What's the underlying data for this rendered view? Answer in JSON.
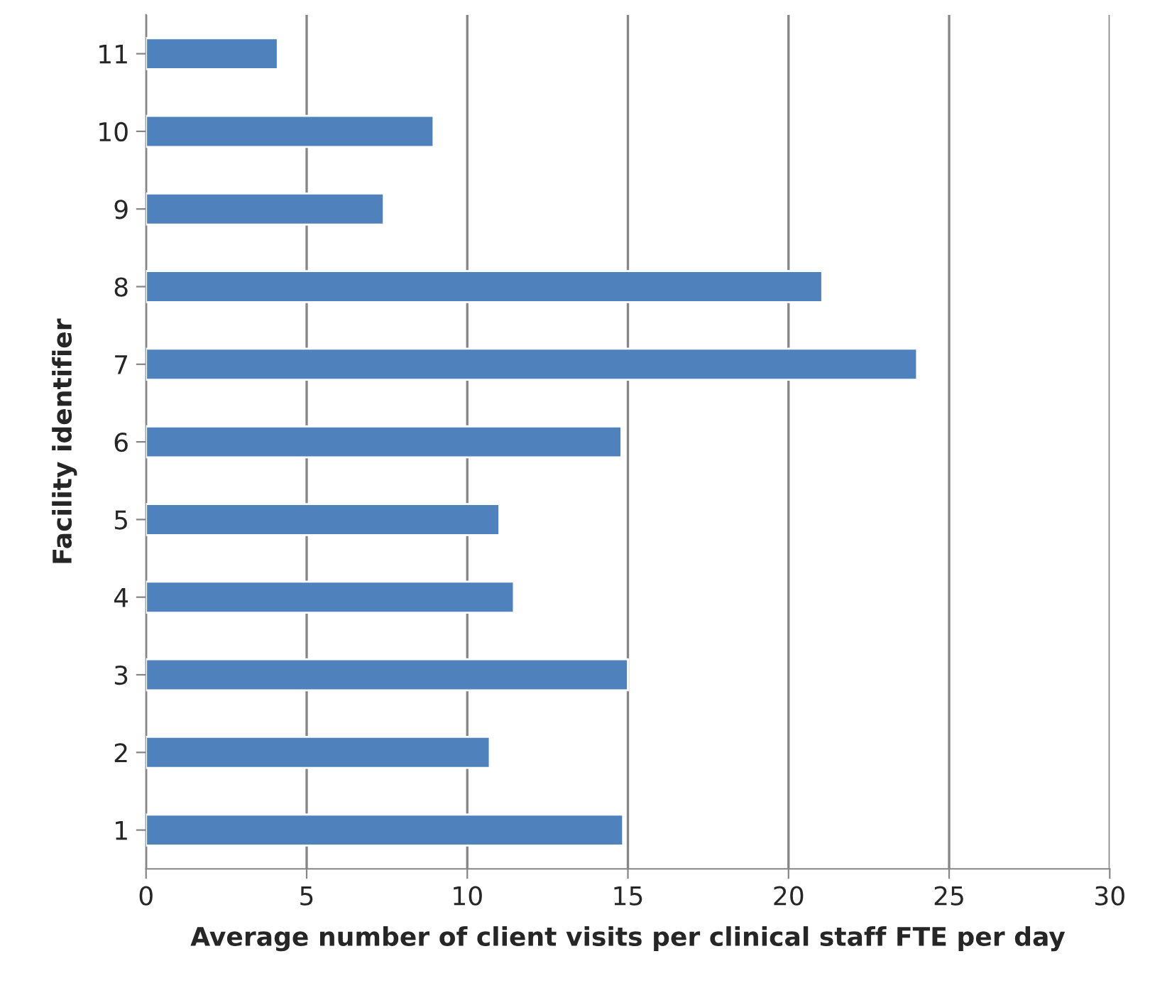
{
  "chart_data": {
    "type": "bar",
    "orientation": "horizontal",
    "xlabel": "Average number of client visits per clinical staff FTE per day",
    "ylabel": "Facility identifier",
    "categories": [
      "11",
      "10",
      "9",
      "8",
      "7",
      "6",
      "5",
      "4",
      "3",
      "2",
      "1"
    ],
    "values": [
      4.1,
      8.95,
      7.4,
      21.05,
      24.0,
      14.8,
      11.0,
      11.45,
      15.0,
      10.7,
      14.85
    ],
    "color": "#4f81bd",
    "xlim": [
      0,
      30
    ],
    "xticks": [
      0,
      5,
      10,
      15,
      20,
      25,
      30
    ],
    "grid": "x"
  }
}
